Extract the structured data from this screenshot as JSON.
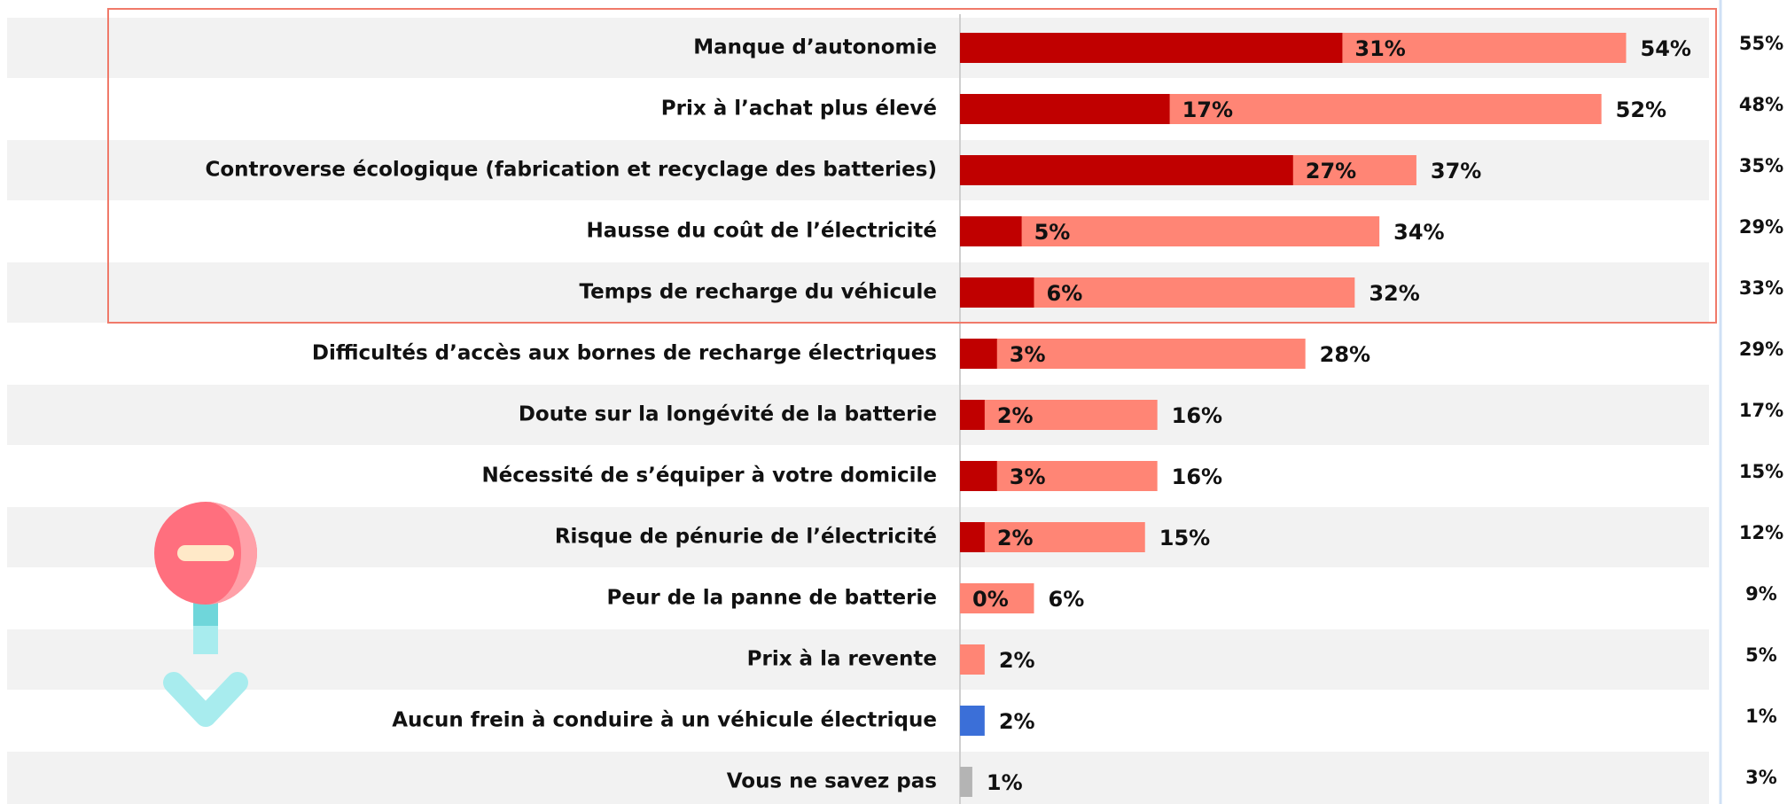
{
  "chart_data": {
    "type": "bar",
    "orientation": "horizontal",
    "categories": [
      "Manque d’autonomie",
      "Prix à l’achat plus élevé",
      "Controverse écologique (fabrication et recyclage des batteries)",
      "Hausse du coût de l’électricité",
      "Temps de recharge du véhicule",
      "Difficultés d’accès aux bornes de recharge électriques",
      "Doute sur la longévité de la batterie",
      "Nécessité de s’équiper à votre domicile",
      "Risque de pénurie de l’électricité",
      "Peur de la panne de batterie",
      "Prix à la revente",
      "Aucun frein à conduire à un véhicule électrique",
      "Vous ne savez pas"
    ],
    "xlim": [
      0,
      60
    ],
    "series": [
      {
        "color": "#ff8575",
        "colors": [
          "#ff8575",
          "#ff8575",
          "#ff8575",
          "#ff8575",
          "#ff8575",
          "#ff8575",
          "#ff8575",
          "#ff8575",
          "#ff8575",
          "#ff8575",
          "#ff8575",
          "#3b6fd8",
          "#b4b4b4"
        ],
        "values": [
          54,
          52,
          37,
          34,
          32,
          28,
          16,
          16,
          15,
          6,
          2,
          2,
          1
        ],
        "value_labels": [
          "54%",
          "52%",
          "37%",
          "34%",
          "32%",
          "28%",
          "16%",
          "16%",
          "15%",
          "6%",
          "2%",
          "2%",
          "1%"
        ]
      },
      {
        "color": "#c00000",
        "values": [
          31,
          17,
          27,
          5,
          6,
          3,
          2,
          3,
          2,
          0,
          null,
          null,
          null
        ],
        "value_labels": [
          "31%",
          "17%",
          "27%",
          "5%",
          "6%",
          "3%",
          "2%",
          "3%",
          "2%",
          "0%",
          null,
          null,
          null
        ]
      }
    ],
    "comparison": {
      "values": [
        55,
        48,
        35,
        29,
        33,
        29,
        17,
        15,
        12,
        9,
        5,
        1,
        3
      ],
      "value_labels": [
        "55%",
        "48%",
        "35%",
        "29%",
        "33%",
        "29%",
        "17%",
        "15%",
        "12%",
        "9%",
        "5%",
        "1%",
        "3%"
      ]
    }
  }
}
